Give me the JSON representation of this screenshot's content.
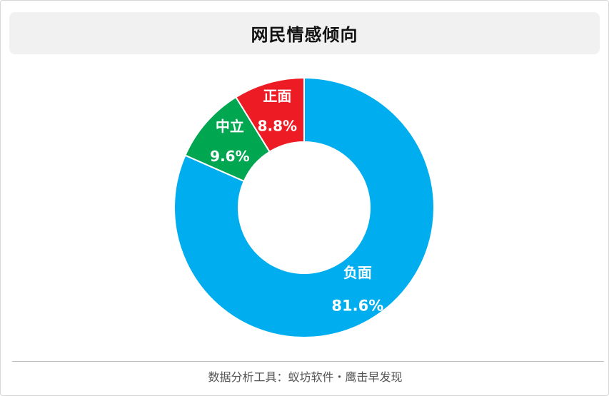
{
  "title": "网民情感倾向",
  "footer": "数据分析工具：蚁坊软件・鹰击早发现",
  "chart_data": {
    "type": "pie",
    "donut": true,
    "title": "网民情感倾向",
    "slices": [
      {
        "label": "负面",
        "value": 81.6,
        "display": "81.6%",
        "color": "#00aeef"
      },
      {
        "label": "中立",
        "value": 9.6,
        "display": "9.6%",
        "color": "#00a650"
      },
      {
        "label": "正面",
        "value": 8.8,
        "display": "8.8%",
        "color": "#ed1c24"
      }
    ],
    "legend": "none"
  }
}
